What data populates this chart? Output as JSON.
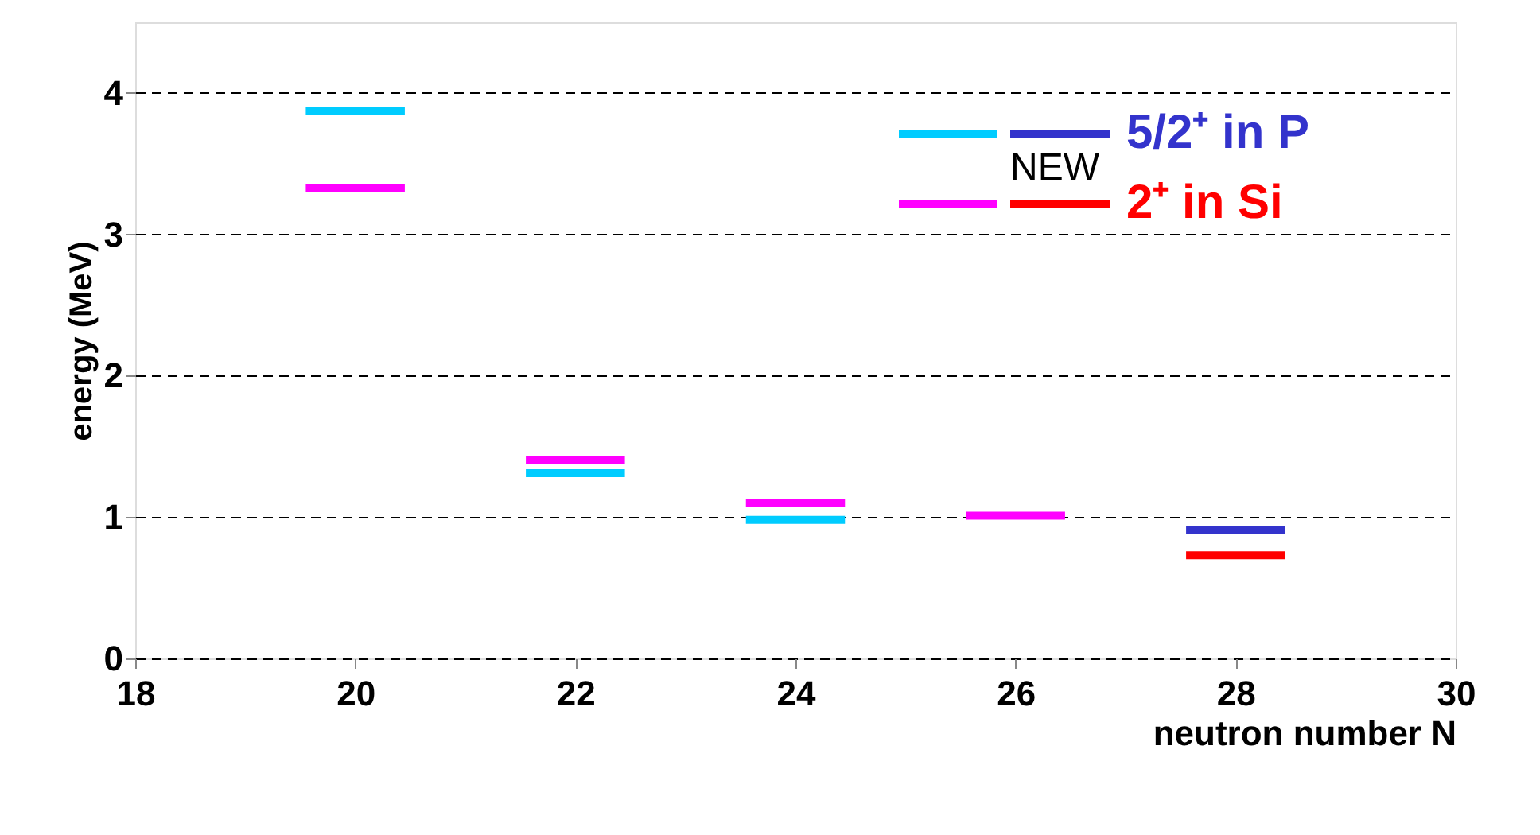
{
  "chart_data": {
    "type": "line",
    "marker": "none",
    "xlabel": "neutron number N",
    "ylabel": "energy (MeV)",
    "xlim": [
      18,
      30
    ],
    "xticks": [
      18,
      20,
      22,
      24,
      26,
      28,
      30
    ],
    "ylim": [
      0,
      4.5
    ],
    "yticks": [
      0,
      1,
      2,
      3,
      4
    ],
    "grid": "y",
    "legend": "top right",
    "annotations": [
      "NEW"
    ],
    "series": [
      {
        "color": "#00ccff",
        "x": [
          19.55,
          20.45,
          21,
          21.55,
          22.45,
          23,
          23.55,
          24.45
        ],
        "values": [
          3.87,
          3.87,
          null,
          1.31,
          1.31,
          null,
          0.98,
          0.98
        ]
      },
      {
        "color": "#ff00ff",
        "x": [
          19.55,
          20.45,
          21,
          21.55,
          22.45,
          23,
          23.55,
          24.45,
          25,
          25.55,
          26.45
        ],
        "values": [
          3.33,
          3.33,
          null,
          1.4,
          1.4,
          null,
          1.1,
          1.1,
          null,
          1.01,
          1.01
        ]
      },
      {
        "name": "5/2⁺ in P",
        "color": "#3333cc",
        "x": [
          27.55,
          28.45
        ],
        "values": [
          0.91,
          0.91
        ]
      },
      {
        "name": "2⁺ in Si",
        "color": "#ff0000",
        "x": [
          27.55,
          28.45
        ],
        "values": [
          0.73,
          0.73
        ]
      }
    ]
  }
}
